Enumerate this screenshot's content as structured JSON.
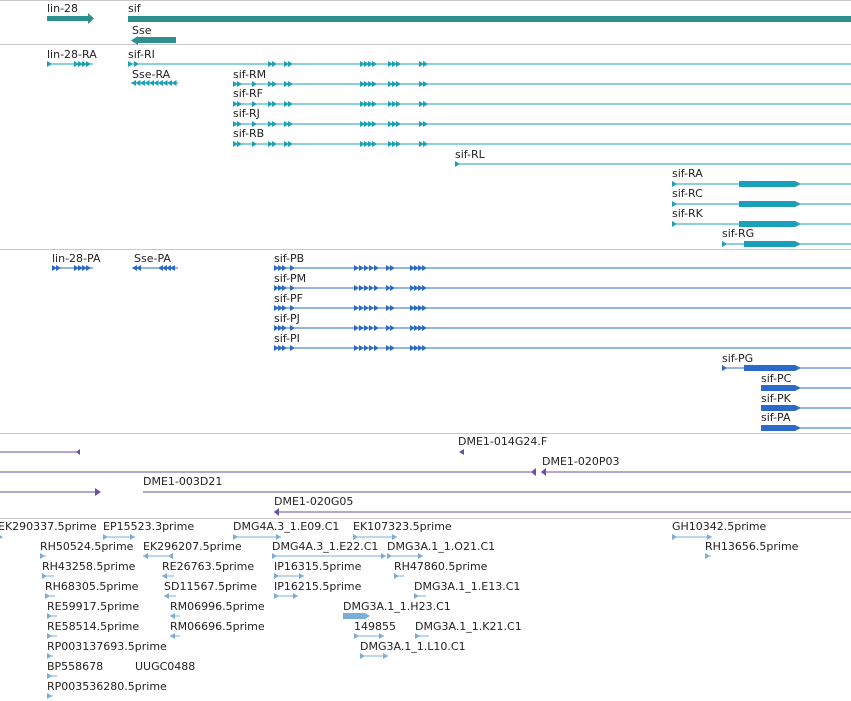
{
  "genes_track": {
    "features": [
      {
        "label": "lin-28"
      },
      {
        "label": "sif"
      },
      {
        "label": "Sse"
      }
    ]
  },
  "transcripts_track": {
    "features": [
      {
        "label": "lin-28-RA"
      },
      {
        "label": "sif-RI"
      },
      {
        "label": "Sse-RA"
      },
      {
        "label": "sif-RM"
      },
      {
        "label": "sif-RF"
      },
      {
        "label": "sif-RJ"
      },
      {
        "label": "sif-RB"
      },
      {
        "label": "sif-RL"
      },
      {
        "label": "sif-RA"
      },
      {
        "label": "sif-RC"
      },
      {
        "label": "sif-RK"
      },
      {
        "label": "sif-RG"
      }
    ]
  },
  "proteins_track": {
    "features": [
      {
        "label": "lin-28-PA"
      },
      {
        "label": "Sse-PA"
      },
      {
        "label": "sif-PB"
      },
      {
        "label": "sif-PM"
      },
      {
        "label": "sif-PF"
      },
      {
        "label": "sif-PJ"
      },
      {
        "label": "sif-PI"
      },
      {
        "label": "sif-PG"
      },
      {
        "label": "sif-PC"
      },
      {
        "label": "sif-PK"
      },
      {
        "label": "sif-PA"
      }
    ]
  },
  "clones_track": {
    "features": [
      {
        "label": "DME1-014G24.F"
      },
      {
        "label": "DME1-020P03"
      },
      {
        "label": "DME1-003D21"
      },
      {
        "label": "DME1-020G05"
      }
    ]
  },
  "ests_track": {
    "features": [
      {
        "label": "EK290337.5prime"
      },
      {
        "label": "EP15523.3prime"
      },
      {
        "label": "DMG4A.3_1.E09.C1"
      },
      {
        "label": "EK107323.5prime"
      },
      {
        "label": "GH10342.5prime"
      },
      {
        "label": "RH50524.5prime"
      },
      {
        "label": "EK296207.5prime"
      },
      {
        "label": "DMG4A.3_1.E22.C1"
      },
      {
        "label": "DMG3A.1_1.O21.C1"
      },
      {
        "label": "RH13656.5prime"
      },
      {
        "label": "RH43258.5prime"
      },
      {
        "label": "RE26763.5prime"
      },
      {
        "label": "IP16315.5prime"
      },
      {
        "label": "RH47860.5prime"
      },
      {
        "label": "RH68305.5prime"
      },
      {
        "label": "SD11567.5prime"
      },
      {
        "label": "IP16215.5prime"
      },
      {
        "label": "DMG3A.1_1.E13.C1"
      },
      {
        "label": "RE59917.5prime"
      },
      {
        "label": "RM06996.5prime"
      },
      {
        "label": "DMG3A.1_1.H23.C1"
      },
      {
        "label": "RE58514.5prime"
      },
      {
        "label": "RM06696.5prime"
      },
      {
        "label": "149855"
      },
      {
        "label": "DMG3A.1_1.K21.C1"
      },
      {
        "label": "RP003137693.5prime"
      },
      {
        "label": "DMG3A.1_1.L10.C1"
      },
      {
        "label": "BP558678"
      },
      {
        "label": "UUGC0488"
      },
      {
        "label": "RP003536280.5prime"
      }
    ]
  },
  "colors": {
    "gene": "#2e8f8f",
    "transcript": "#1aa0b8",
    "protein": "#2a6ac8",
    "clone": "#6a4fa8",
    "est": "#7aaed8",
    "separator": "#c8c8c8"
  }
}
